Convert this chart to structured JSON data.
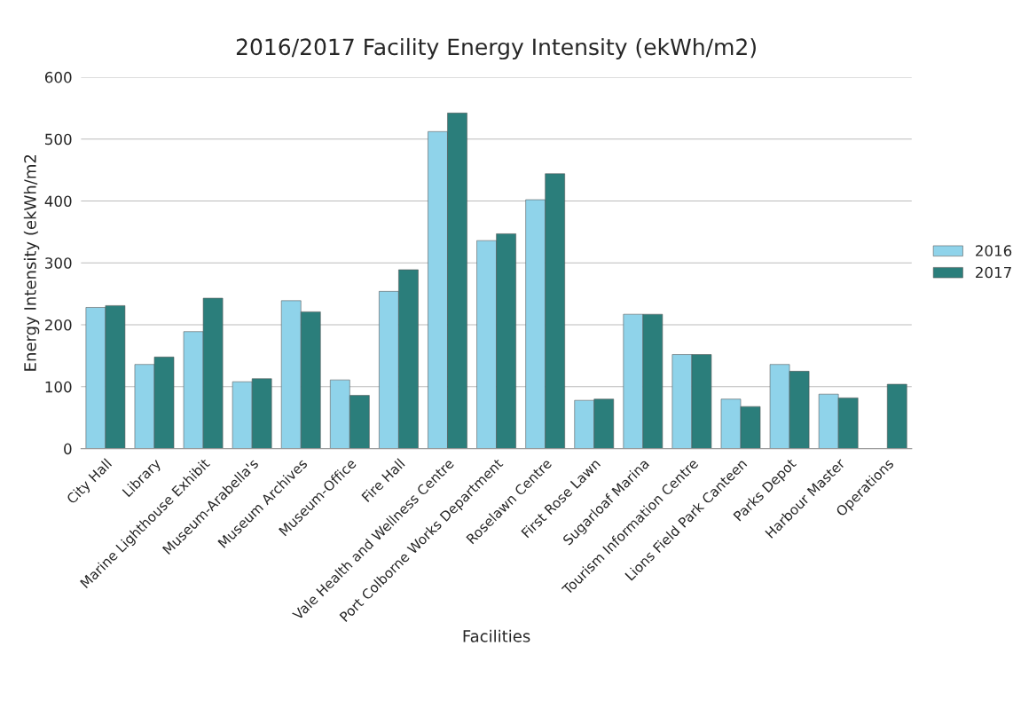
{
  "chart_data": {
    "type": "bar",
    "title": "2016/2017 Facility Energy Intensity (ekWh/m2)",
    "xlabel": "Facilities",
    "ylabel": "Energy Intensity (ekWh/m2",
    "categories": [
      "City Hall",
      "Library",
      "Marine Lighthouse Exhibit",
      "Museum-Arabella's",
      "Museum Archives",
      "Museum-Office",
      "Fire Hall",
      "Vale Health and Wellness Centre",
      "Port Colborne Works Department",
      "Roselawn Centre",
      "First Rose Lawn",
      "Sugarloaf Marina",
      "Tourism Information Centre",
      "Lions Field Park Canteen",
      "Parks Depot",
      "Harbour Master",
      "Operations"
    ],
    "series": [
      {
        "name": "2016",
        "color": "#8fd3ea",
        "values": [
          228,
          136,
          189,
          108,
          239,
          111,
          254,
          512,
          336,
          402,
          78,
          217,
          152,
          80,
          136,
          88,
          null
        ]
      },
      {
        "name": "2017",
        "color": "#2b7e7b",
        "values": [
          231,
          148,
          243,
          113,
          221,
          86,
          289,
          542,
          347,
          444,
          80,
          217,
          152,
          68,
          125,
          82,
          104
        ]
      }
    ],
    "ylim": [
      0,
      600
    ],
    "yticks": [
      0,
      100,
      200,
      300,
      400,
      500,
      600
    ],
    "grid": "y",
    "legend": "right"
  }
}
